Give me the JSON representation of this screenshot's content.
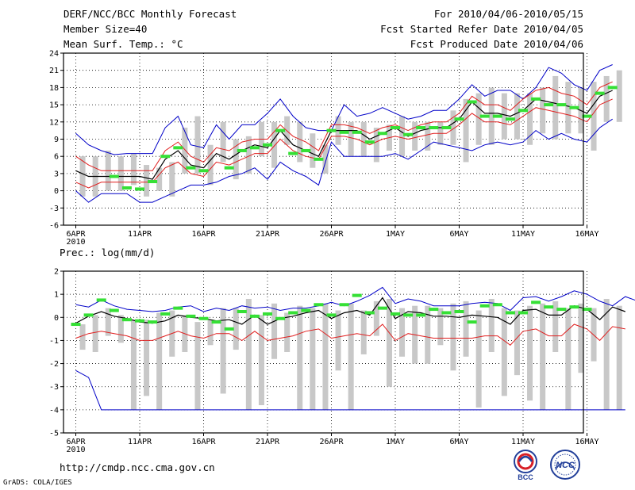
{
  "header": {
    "title": "DERF/NCC/BCC Monthly Forecast",
    "member_size": "Member Size=40",
    "var_label": "Mean Surf. Temp.: °C",
    "period": "For 2010/04/06-2010/05/15",
    "start_date": "Fcst Started Refer Date 2010/04/05",
    "produced_date": "Fcst Produced Date 2010/04/06"
  },
  "footer": {
    "url": "http://cmdp.ncc.cma.gov.cn",
    "credit": "GrADS: COLA/IGES",
    "logo1_text": "BCC",
    "logo2_text": "NCC"
  },
  "colors": {
    "spread": "#c8c8c8",
    "extreme": "#0000c8",
    "std": "#e01e1e",
    "mean": "#000000",
    "obs": "#35e035"
  },
  "chart_data": [
    {
      "type": "line",
      "title": "Mean Surf. Temp.: °C",
      "x_labels": [
        "6APR",
        "11APR",
        "16APR",
        "21APR",
        "26APR",
        "1MAY",
        "6MAY",
        "11MAY",
        "16MAY"
      ],
      "x_sublabel": "2010",
      "ylim": [
        -6,
        24
      ],
      "y_ticks": [
        -6,
        -3,
        0,
        3,
        6,
        9,
        12,
        15,
        18,
        21,
        24
      ],
      "series": [
        {
          "name": "ensemble_max",
          "values": [
            10,
            8,
            7,
            6.3,
            6.5,
            6.5,
            6.5,
            11,
            13,
            8,
            7.5,
            11.5,
            9,
            11.5,
            11.5,
            13.5,
            16,
            13,
            11,
            10.5,
            10.5,
            15,
            13,
            13.5,
            14.5,
            13.5,
            12.5,
            13,
            14,
            14,
            16,
            18.5,
            16.5,
            17.5,
            17.5,
            16,
            18,
            21.5,
            20.5,
            18.5,
            17.5,
            21,
            22
          ]
        },
        {
          "name": "mean_plus_std",
          "values": [
            6,
            4.5,
            3.5,
            3.5,
            3.5,
            3.5,
            3.5,
            7,
            8.5,
            6,
            5,
            7.5,
            7,
            8.5,
            9,
            9,
            11.5,
            9.5,
            8.5,
            7,
            11.5,
            11.5,
            11,
            10,
            11,
            11.5,
            10.5,
            11.5,
            12,
            12,
            13.5,
            16.5,
            15,
            15,
            14,
            16,
            17.5,
            18,
            17,
            16.5,
            15,
            18,
            19
          ]
        },
        {
          "name": "ensemble_mean",
          "values": [
            3.5,
            2.5,
            2.5,
            2.5,
            2.5,
            2.5,
            2,
            5.5,
            7,
            4.5,
            4,
            6.5,
            5.5,
            7,
            8,
            7.5,
            10.5,
            8,
            7,
            6,
            10.5,
            10.5,
            10.5,
            9,
            10,
            11,
            9.5,
            10.5,
            11,
            11,
            12.5,
            15.5,
            13.5,
            13.5,
            13,
            14,
            16,
            15.5,
            15,
            14.5,
            13.5,
            16.5,
            17.5
          ]
        },
        {
          "name": "mean_minus_std",
          "values": [
            1.5,
            0.5,
            1.5,
            1.5,
            1.5,
            1.5,
            1.5,
            4,
            5,
            3,
            2.5,
            5,
            4.5,
            5.5,
            6.5,
            6.5,
            9,
            7,
            6,
            5.5,
            9.5,
            9.5,
            9,
            8,
            9,
            9.5,
            9,
            9.5,
            10,
            10,
            11.5,
            13.5,
            12,
            12,
            11.5,
            13,
            14.5,
            14,
            13.5,
            13,
            12,
            15,
            16
          ]
        },
        {
          "name": "ensemble_min",
          "values": [
            0,
            -2,
            -0.5,
            -0.5,
            -0.5,
            -2,
            -2,
            -1,
            0,
            1,
            1,
            1.5,
            2.5,
            3,
            4,
            2,
            5,
            3.5,
            2.5,
            1,
            8.5,
            6,
            6,
            6,
            6,
            6.5,
            5.5,
            7,
            8.5,
            8,
            7.5,
            7,
            8,
            8.5,
            8,
            8.5,
            10.5,
            9,
            10,
            9,
            8.5,
            11,
            12.5
          ]
        },
        {
          "name": "observation",
          "values": [
            null,
            null,
            null,
            2.5,
            0.5,
            0.3,
            1.6,
            6,
            7.5,
            4,
            3.5,
            null,
            4,
            7,
            7.5,
            8,
            10.5,
            6.5,
            7,
            5.5,
            10.5,
            10.2,
            10.2,
            8.5,
            10,
            11,
            9.8,
            11,
            11,
            11,
            12.5,
            15.5,
            13,
            13,
            12.5,
            14,
            16,
            15,
            15,
            14.5,
            13,
            17,
            18
          ]
        },
        {
          "name": "spread_high",
          "values": [
            6,
            6,
            7,
            6,
            6.5,
            4.5,
            4,
            5,
            11,
            13,
            8,
            12,
            9,
            9.5,
            12,
            12,
            13,
            12,
            10,
            8,
            13,
            12,
            12,
            11,
            11.5,
            13,
            12,
            12,
            12,
            14,
            16,
            17,
            18,
            17,
            17,
            17,
            18,
            20,
            19,
            18,
            19,
            20,
            21
          ]
        },
        {
          "name": "spread_low",
          "values": [
            -1,
            -1,
            0,
            0,
            1,
            -1,
            0,
            -1,
            3,
            3,
            1,
            5,
            2,
            3,
            6,
            4,
            8,
            5,
            4,
            3,
            8,
            6,
            6,
            5,
            7,
            6,
            7,
            7,
            8,
            8,
            5,
            8,
            8,
            9,
            9,
            8,
            10,
            9,
            10,
            10,
            7,
            12,
            12
          ]
        }
      ]
    },
    {
      "type": "line",
      "title": "Prec.: log(mm/d)",
      "x_labels": [
        "6APR",
        "11APR",
        "16APR",
        "21APR",
        "26APR",
        "1MAY",
        "6MAY",
        "11MAY",
        "16MAY"
      ],
      "x_sublabel": "2010",
      "ylim": [
        -5,
        2
      ],
      "y_ticks": [
        -5,
        -4,
        -3,
        -2,
        -1,
        0,
        1,
        2
      ],
      "series": [
        {
          "name": "ensemble_max",
          "values": [
            0.55,
            0.45,
            0.75,
            0.5,
            0.35,
            0.3,
            0.25,
            0.3,
            0.45,
            0.5,
            0.25,
            0.4,
            0.3,
            0.5,
            0.4,
            0.45,
            0.3,
            0.4,
            0.4,
            0.5,
            0.65,
            0.5,
            0.7,
            0.95,
            1.3,
            0.6,
            0.8,
            0.7,
            0.5,
            0.5,
            0.5,
            0.6,
            0.65,
            0.6,
            0.3,
            0.85,
            0.9,
            0.7,
            0.9,
            1.15,
            1.0,
            0.7,
            0.5,
            0.9,
            0.7
          ]
        },
        {
          "name": "ensemble_mean",
          "values": [
            -0.25,
            0.05,
            0.25,
            0.05,
            -0.05,
            -0.2,
            -0.25,
            -0.15,
            0.1,
            0.0,
            -0.05,
            -0.15,
            -0.1,
            -0.3,
            0.1,
            -0.3,
            -0.05,
            0.05,
            0.2,
            0.3,
            -0.05,
            0.2,
            0.3,
            0.1,
            0.85,
            -0.05,
            0.25,
            0.2,
            0.05,
            0.05,
            0.0,
            0.1,
            0.05,
            0.0,
            -0.3,
            0.3,
            0.35,
            0.1,
            0.1,
            0.5,
            0.35,
            -0.1,
            0.45,
            0.25
          ]
        },
        {
          "name": "ensemble_min",
          "values": [
            -2.3,
            -2.6,
            -4,
            -4,
            -4,
            -4,
            -4,
            -4,
            -4,
            -4,
            -4,
            -4,
            -4,
            -4,
            -4,
            -4,
            -4,
            -4,
            -4,
            -4,
            -4,
            -4,
            -4,
            -4,
            -4,
            -4,
            -4,
            -4,
            -4,
            -4,
            -4,
            -4,
            -4,
            -4,
            -4,
            -4,
            -4,
            -4,
            -4,
            -4,
            -4,
            -4,
            -4,
            -4
          ]
        },
        {
          "name": "mean_minus_std",
          "values": [
            -0.9,
            -0.7,
            -0.6,
            -0.7,
            -0.8,
            -1.0,
            -1.0,
            -0.8,
            -0.6,
            -0.8,
            -0.9,
            -0.7,
            -0.7,
            -1.0,
            -0.6,
            -1.0,
            -0.9,
            -0.8,
            -0.6,
            -0.5,
            -0.9,
            -0.8,
            -0.7,
            -0.8,
            -0.3,
            -1.0,
            -0.7,
            -0.8,
            -0.9,
            -0.9,
            -0.9,
            -0.9,
            -0.8,
            -0.8,
            -1.2,
            -0.6,
            -0.5,
            -0.8,
            -0.8,
            -0.3,
            -0.5,
            -1.0,
            -0.4,
            -0.5
          ]
        },
        {
          "name": "observation",
          "values": [
            -0.3,
            0.1,
            0.75,
            0.3,
            -0.1,
            -0.15,
            -0.2,
            0.15,
            0.4,
            0.05,
            -0.05,
            -0.2,
            -0.5,
            0.25,
            0.05,
            0.15,
            -0.05,
            0.2,
            0.3,
            0.55,
            0.1,
            0.55,
            0.95,
            0.2,
            0.4,
            0.15,
            0.1,
            0.1,
            0.35,
            0.2,
            0.25,
            -0.2,
            0.5,
            0.55,
            0.2,
            0.2,
            0.65,
            0.45,
            0.35,
            0.45,
            0.35
          ]
        },
        {
          "name": "spread_high",
          "values": [
            -0.3,
            0.1,
            0.4,
            0.1,
            -0.1,
            -0.1,
            0.2,
            0.3,
            0.1,
            -0.2,
            -0.1,
            0.4,
            0.4,
            0.8,
            0.1,
            0.6,
            0.2,
            0.5,
            0.4,
            0.6,
            0.3,
            0.6,
            0.3,
            0.7,
            0.8,
            0.4,
            0.5,
            0.5,
            0.4,
            0.6,
            0.7,
            0.3,
            0.8,
            0.4,
            0.3,
            0.5,
            0.6,
            0.7,
            0.4,
            0.6,
            0.4,
            0.8,
            0.5
          ]
        },
        {
          "name": "spread_low",
          "values": [
            -1.4,
            -1.5,
            -0.8,
            -1.1,
            -4,
            -3.4,
            -4,
            -1.7,
            -1.5,
            -4,
            -1.2,
            -3.3,
            -1.4,
            -4,
            -3.8,
            -1.8,
            -1.5,
            -4,
            -4,
            -4,
            -2.3,
            -4,
            -1.6,
            -0.8,
            -3,
            -1.7,
            -2,
            -2,
            -1.2,
            -2.3,
            -1.7,
            -3.9,
            -1.5,
            -3.4,
            -2.5,
            -3.6,
            -4,
            -1.5,
            -4,
            -2.4,
            -1.9,
            -4,
            -4,
            -4
          ]
        }
      ]
    }
  ]
}
